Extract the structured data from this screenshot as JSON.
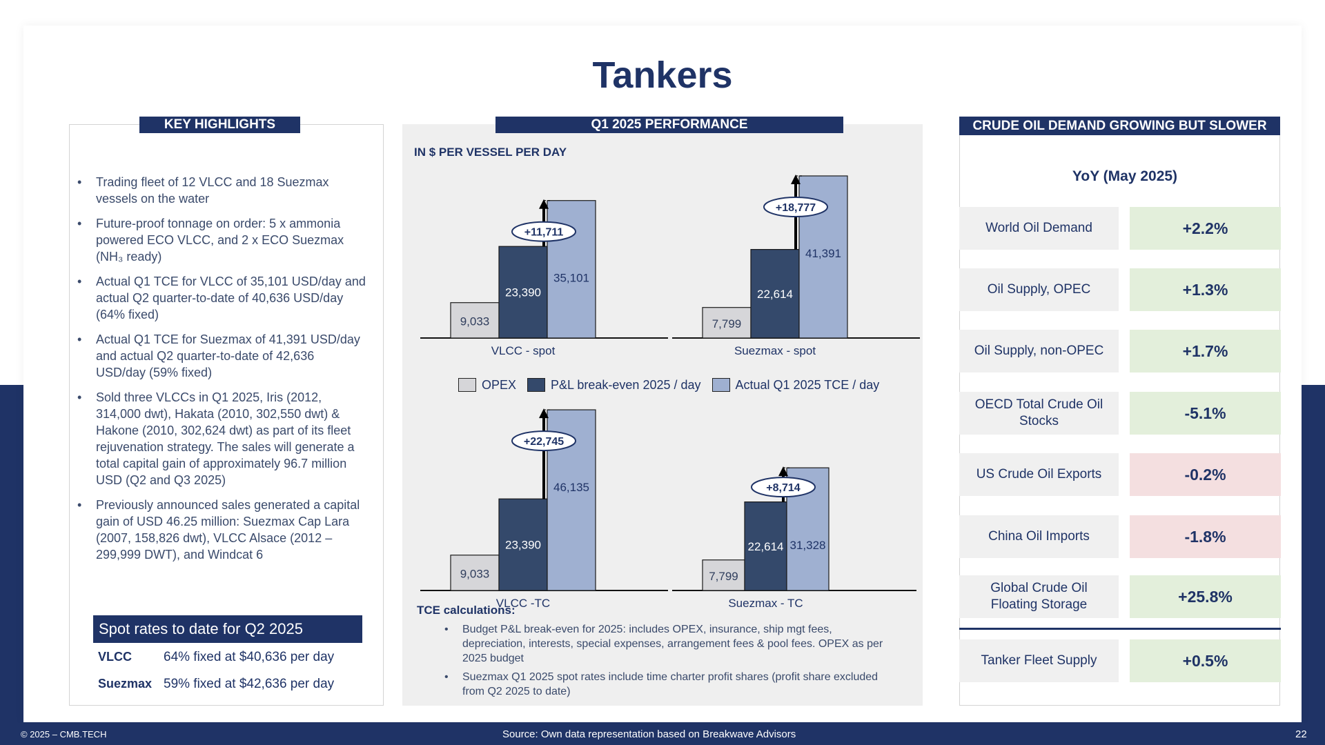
{
  "title": "Tankers",
  "key_highlights": {
    "header": "KEY HIGHLIGHTS",
    "bullets": [
      "Trading fleet of 12 VLCC and 18 Suezmax vessels on the water",
      "Future-proof tonnage on order: 5 x ammonia powered ECO VLCC, and 2 x ECO Suezmax (NH₃ ready)",
      "Actual Q1 TCE for VLCC of 35,101 USD/day and actual Q2 quarter-to-date of 40,636 USD/day (64% fixed)",
      "Actual Q1 TCE for Suezmax of 41,391 USD/day and actual Q2 quarter-to-date of 42,636 USD/day (59% fixed)",
      "Sold three VLCCs in Q1 2025, Iris (2012, 314,000 dwt), Hakata (2010, 302,550 dwt) & Hakone (2010, 302,624 dwt) as part of its fleet rejuvenation strategy. The sales will generate a total capital gain of approximately 96.7 million USD (Q2 and Q3 2025)",
      "Previously announced sales generated a capital gain of USD 46.25 million: Suezmax Cap Lara (2007, 158,826 dwt), VLCC Alsace (2012 – 299,999 DWT), and Windcat 6"
    ],
    "spot_title": "Spot rates to date for Q2 2025",
    "spot_rows": [
      {
        "label": "VLCC",
        "text": "64% fixed at $40,636 per day"
      },
      {
        "label": "Suezmax",
        "text": "59% fixed at $42,636 per day"
      }
    ]
  },
  "performance": {
    "header": "Q1 2025 PERFORMANCE",
    "subtitle": "IN $ PER VESSEL PER DAY",
    "legend": [
      "OPEX",
      "P&L break-even 2025 / day",
      "Actual Q1 2025 TCE / day"
    ],
    "tce_title": "TCE calculations:",
    "tce_notes": [
      "Budget P&L break-even for 2025: includes OPEX, insurance, ship mgt fees, depreciation, interests, special expenses, arrangement fees & pool fees. OPEX as per 2025 budget",
      "Suezmax Q1 2025 spot rates include time charter profit shares (profit share excluded from Q2 2025 to date)"
    ]
  },
  "chart_data": [
    {
      "type": "bar",
      "category": "VLCC - spot",
      "series": [
        "OPEX",
        "P&L break-even 2025 / day",
        "Actual Q1 2025 TCE / day"
      ],
      "values": [
        9033,
        23390,
        35101
      ],
      "labels": [
        "9,033",
        "23,390",
        "35,101"
      ],
      "delta": "+11,711"
    },
    {
      "type": "bar",
      "category": "Suezmax - spot",
      "series": [
        "OPEX",
        "P&L break-even 2025 / day",
        "Actual Q1 2025 TCE / day"
      ],
      "values": [
        7799,
        22614,
        41391
      ],
      "labels": [
        "7,799",
        "22,614",
        "41,391"
      ],
      "delta": "+18,777"
    },
    {
      "type": "bar",
      "category": "VLCC -TC",
      "series": [
        "OPEX",
        "P&L break-even 2025 / day",
        "Actual Q1 2025 TCE / day"
      ],
      "values": [
        9033,
        23390,
        46135
      ],
      "labels": [
        "9,033",
        "23,390",
        "46,135"
      ],
      "delta": "+22,745"
    },
    {
      "type": "bar",
      "category": "Suezmax - TC",
      "series": [
        "OPEX",
        "P&L break-even 2025 / day",
        "Actual Q1 2025 TCE / day"
      ],
      "values": [
        7799,
        22614,
        31328
      ],
      "labels": [
        "7,799",
        "22,614",
        "31,328"
      ],
      "delta": "+8,714"
    }
  ],
  "crude": {
    "header": "CRUDE OIL DEMAND GROWING BUT SLOWER",
    "yoy": "YoY (May 2025)",
    "rows": [
      {
        "name": "World Oil Demand",
        "value": "+2.2%",
        "tone": "pos"
      },
      {
        "name": "Oil Supply, OPEC",
        "value": "+1.3%",
        "tone": "pos"
      },
      {
        "name": "Oil Supply, non-OPEC",
        "value": "+1.7%",
        "tone": "pos"
      },
      {
        "name": "OECD Total Crude Oil Stocks",
        "value": "-5.1%",
        "tone": "pos"
      },
      {
        "name": "US Crude Oil Exports",
        "value": "-0.2%",
        "tone": "neg"
      },
      {
        "name": "China Oil Imports",
        "value": "-1.8%",
        "tone": "neg"
      },
      {
        "name": "Global Crude Oil Floating Storage",
        "value": "+25.8%",
        "tone": "pos"
      },
      {
        "name": "Tanker Fleet Supply",
        "value": "+0.5%",
        "tone": "pos"
      }
    ]
  },
  "footer": {
    "copyright": "© 2025 – CMB.TECH",
    "source": "Source:  Own data representation based on Breakwave Advisors",
    "page": "22"
  },
  "colors": {
    "navy": "#1f3366",
    "opex": "#d6d6d9",
    "breakeven": "#34496b",
    "tce": "#9fb0d1",
    "positive": "#e3efdb",
    "negative": "#f4dfe0"
  }
}
